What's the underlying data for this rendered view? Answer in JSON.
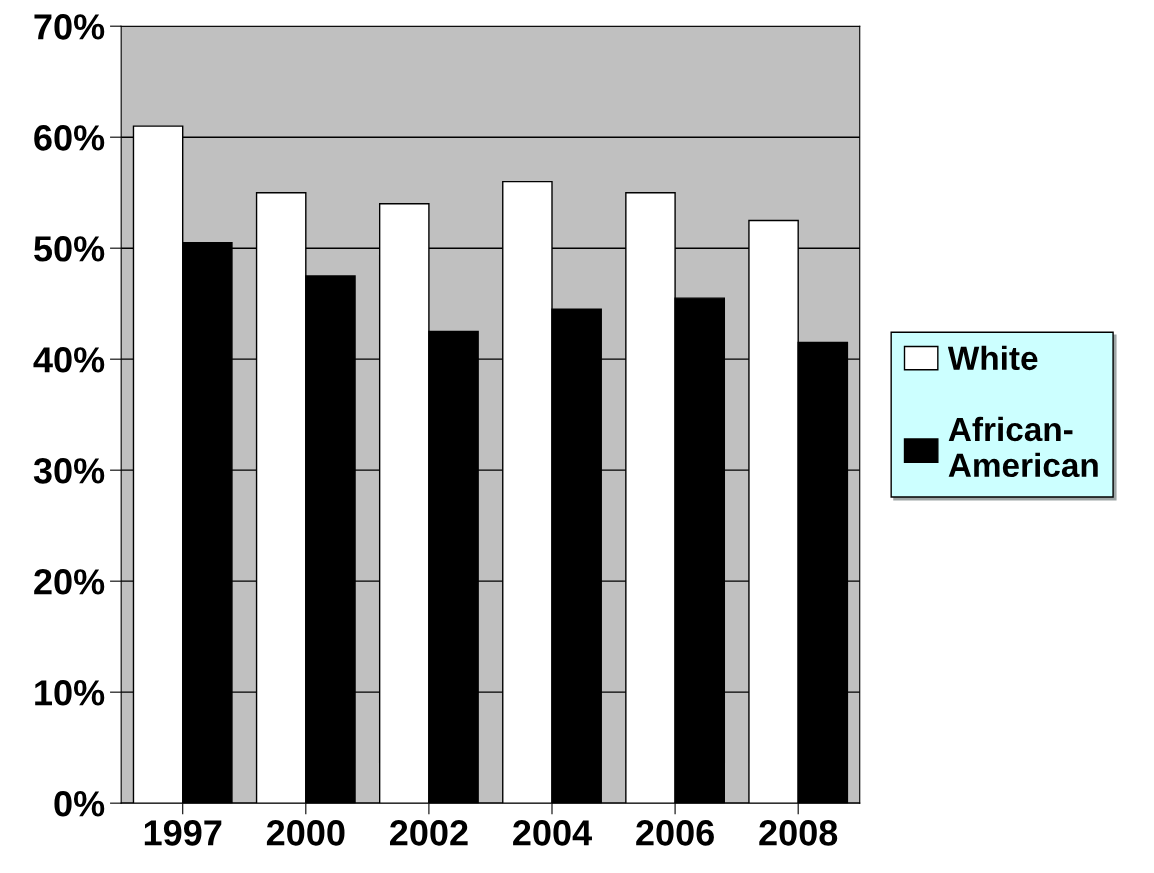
{
  "chart_data": {
    "type": "bar",
    "categories": [
      "1997",
      "2000",
      "2002",
      "2004",
      "2006",
      "2008"
    ],
    "series": [
      {
        "name": "White",
        "color": "#ffffff",
        "values": [
          61,
          55,
          54,
          56,
          55,
          52.5
        ]
      },
      {
        "name": "African-\nAmerican",
        "color": "#000000",
        "values": [
          50.5,
          47.5,
          42.5,
          44.5,
          45.5,
          41.5
        ]
      }
    ],
    "ylim": [
      0,
      70
    ],
    "yticks": [
      {
        "value": 0,
        "label": "0%"
      },
      {
        "value": 10,
        "label": "10%"
      },
      {
        "value": 20,
        "label": "20%"
      },
      {
        "value": 30,
        "label": "30%"
      },
      {
        "value": 40,
        "label": "40%"
      },
      {
        "value": 50,
        "label": "50%"
      },
      {
        "value": 60,
        "label": "60%"
      },
      {
        "value": 70,
        "label": "70%"
      }
    ],
    "grid": "y",
    "legend": "right"
  }
}
